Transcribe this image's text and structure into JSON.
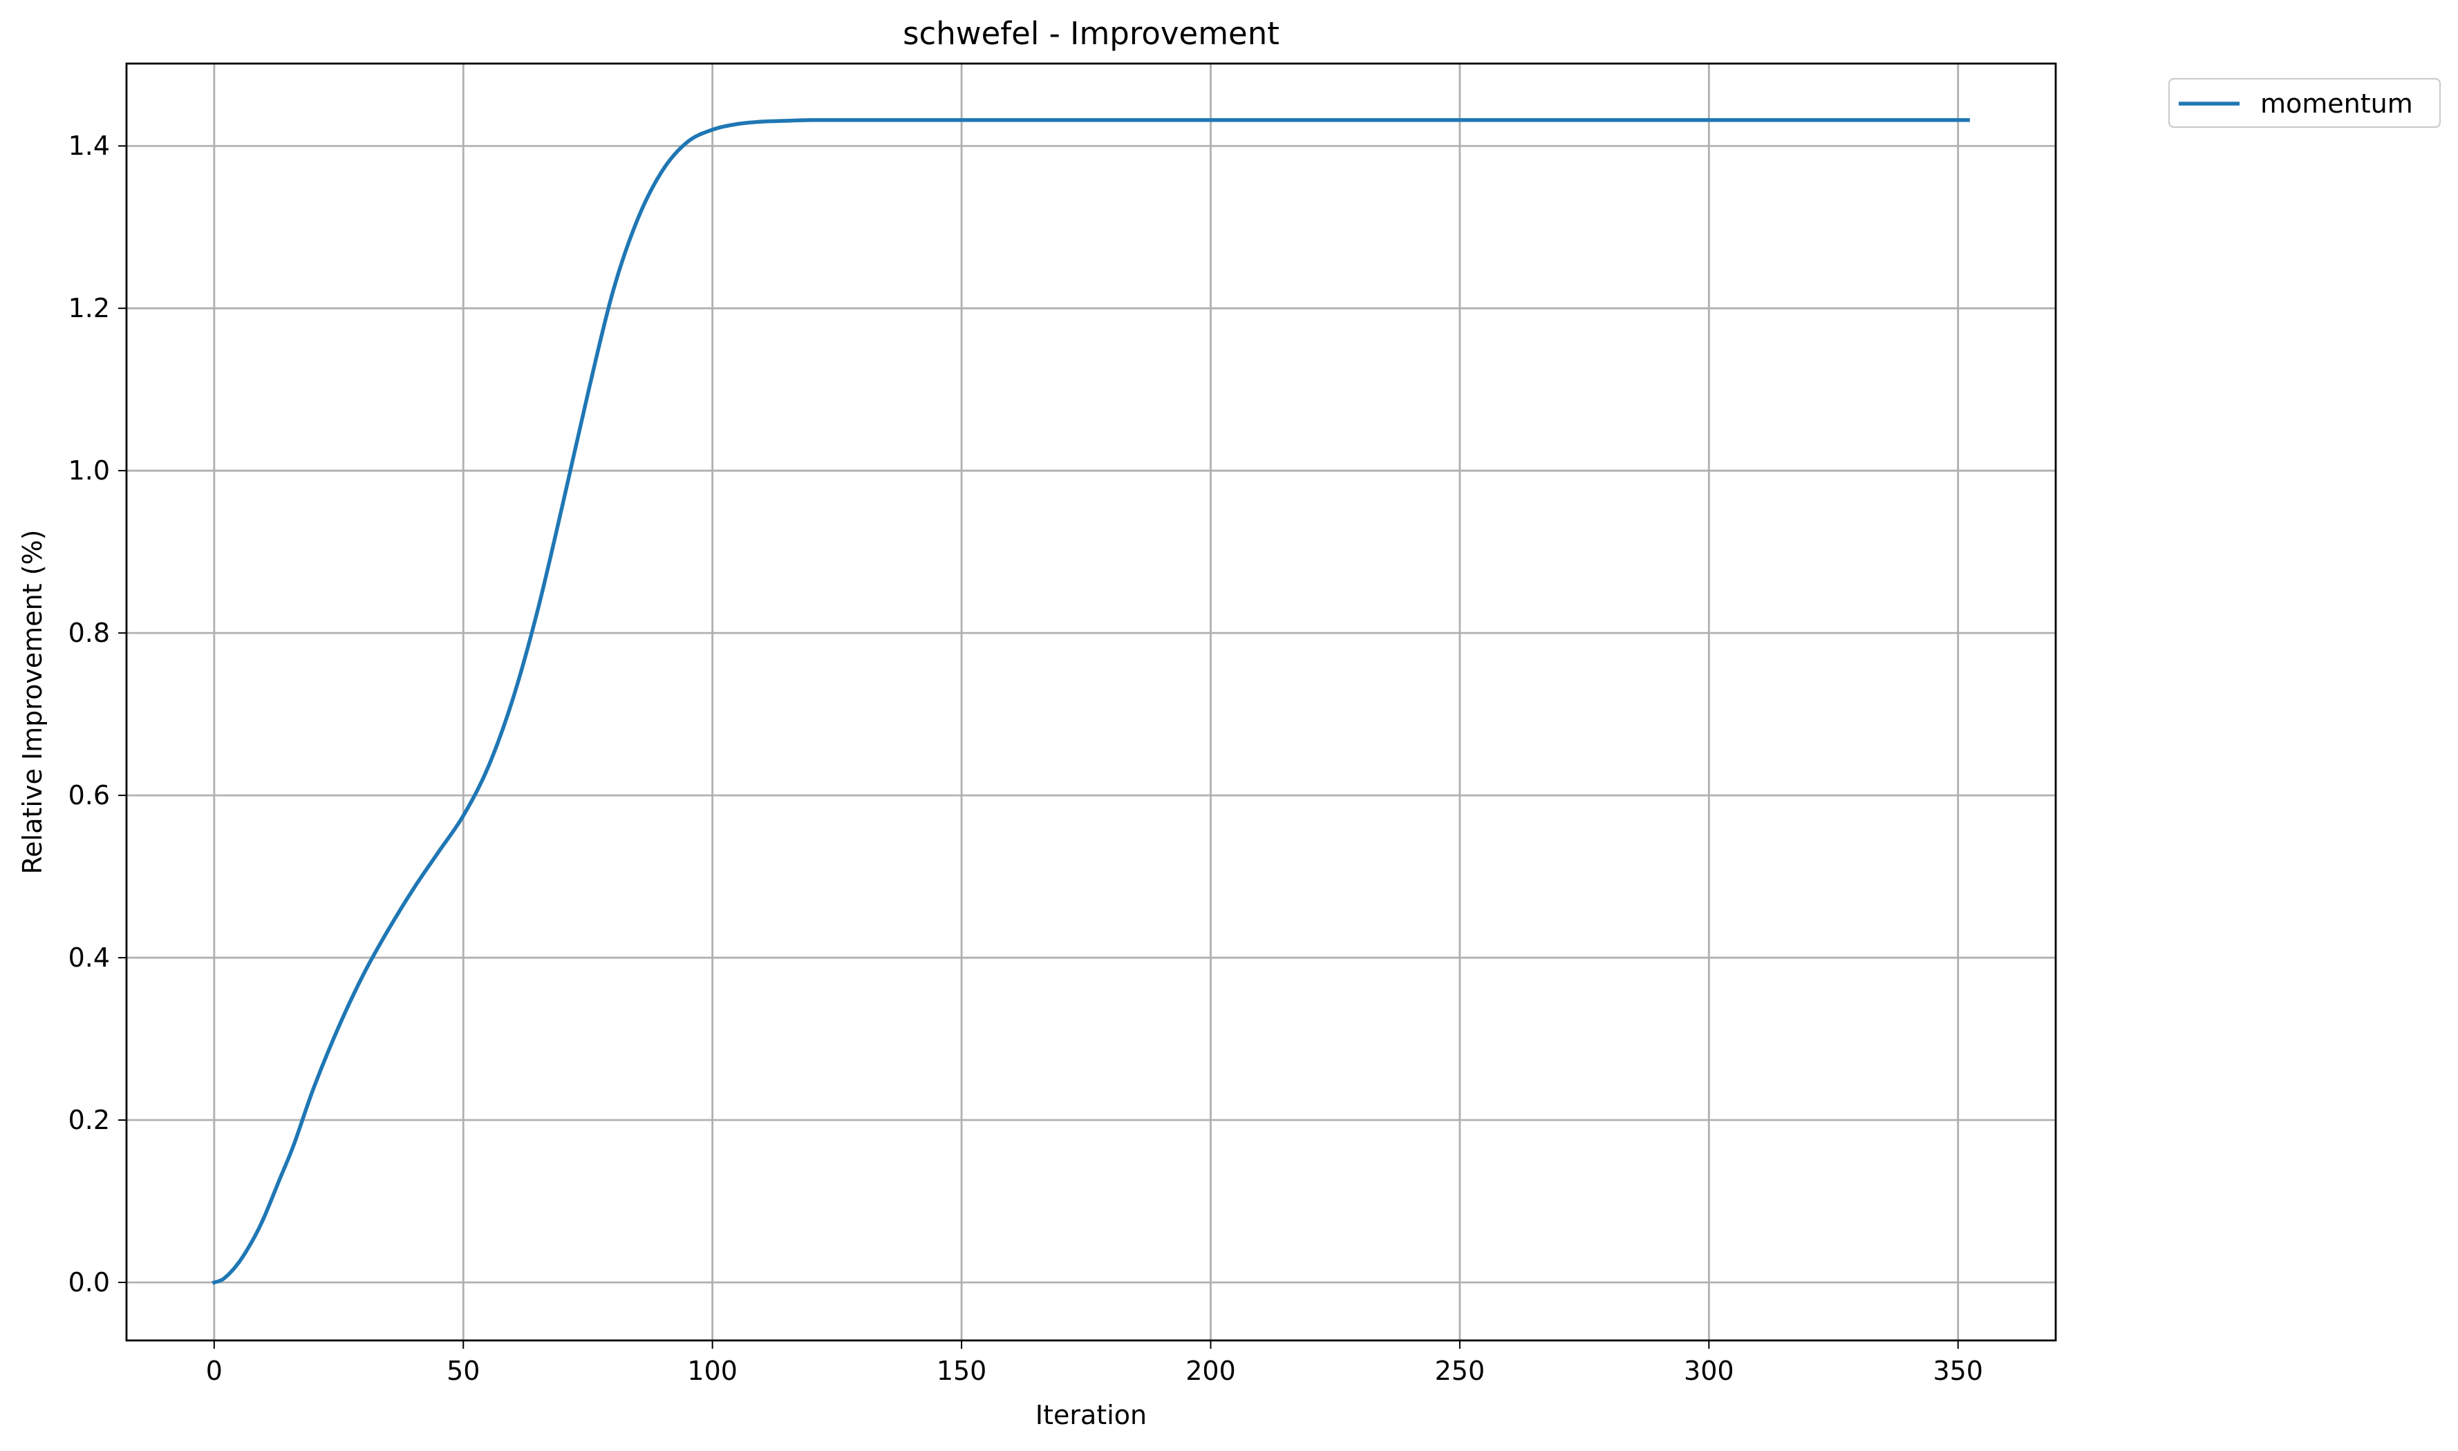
{
  "chart_data": {
    "type": "line",
    "title": "schwefel - Improvement",
    "xlabel": "Iteration",
    "ylabel": "Relative Improvement (%)",
    "xlim": [
      -17.6,
      369.6
    ],
    "ylim": [
      -0.0715,
      1.5015
    ],
    "xticks": [
      0,
      50,
      100,
      150,
      200,
      250,
      300,
      350
    ],
    "xtick_labels": [
      "0",
      "50",
      "100",
      "150",
      "200",
      "250",
      "300",
      "350"
    ],
    "yticks": [
      0.0,
      0.2,
      0.4,
      0.6,
      0.8,
      1.0,
      1.2,
      1.4
    ],
    "ytick_labels": [
      "0.0",
      "0.2",
      "0.4",
      "0.6",
      "0.8",
      "1.0",
      "1.2",
      "1.4"
    ],
    "grid": true,
    "legend_position": "outside-top-right",
    "series": [
      {
        "name": "momentum",
        "color": "#1f77b4",
        "x": [
          0,
          2,
          5,
          8,
          10,
          13,
          16,
          20,
          25,
          30,
          35,
          40,
          45,
          50,
          55,
          60,
          65,
          70,
          75,
          80,
          85,
          90,
          95,
          100,
          105,
          110,
          115,
          120,
          130,
          150,
          200,
          250,
          300,
          352
        ],
        "y": [
          0.0,
          0.005,
          0.025,
          0.055,
          0.08,
          0.125,
          0.17,
          0.24,
          0.315,
          0.38,
          0.435,
          0.485,
          0.53,
          0.575,
          0.635,
          0.72,
          0.83,
          0.96,
          1.095,
          1.22,
          1.31,
          1.37,
          1.405,
          1.42,
          1.427,
          1.43,
          1.431,
          1.432,
          1.432,
          1.432,
          1.432,
          1.432,
          1.432,
          1.432
        ]
      }
    ]
  }
}
